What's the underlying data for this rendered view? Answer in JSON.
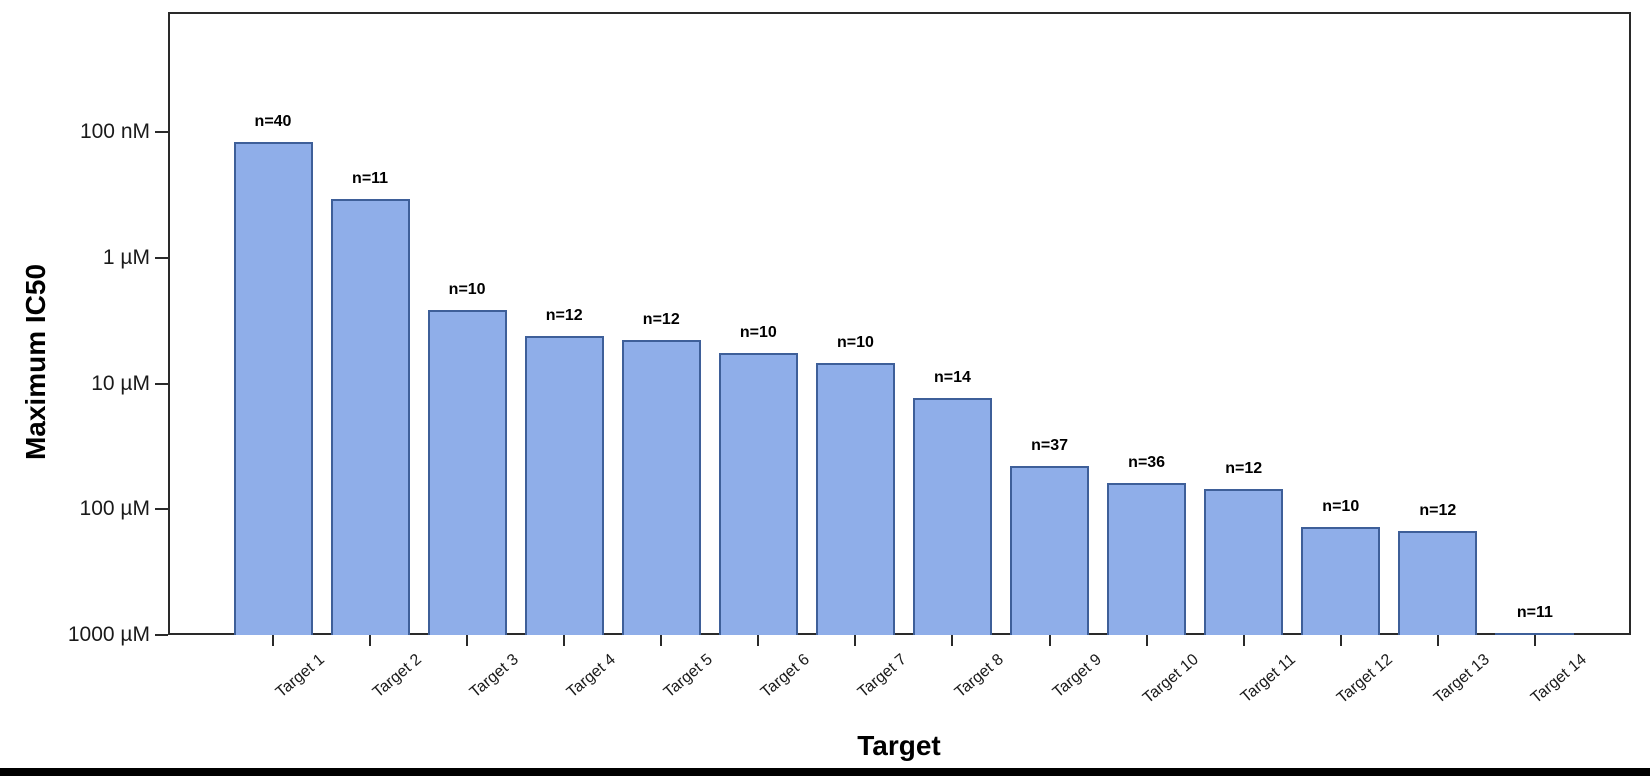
{
  "figure": {
    "background_color": "#ffffff",
    "bottom_strip_color": "#000000"
  },
  "chart_data": {
    "type": "bar",
    "title": "",
    "xlabel": "Target",
    "ylabel": "Maximum IC50",
    "y_scale": "log-inverted",
    "y_units": "µM",
    "ylim_uM": [
      0.011,
      1000
    ],
    "baseline_uM": 1000,
    "grid": "dashed-horizontal",
    "y_ticks": [
      {
        "label": "100 nM",
        "value_uM": 0.1
      },
      {
        "label": "1 µM",
        "value_uM": 1
      },
      {
        "label": "10 µM",
        "value_uM": 10
      },
      {
        "label": "100 µM",
        "value_uM": 100
      },
      {
        "label": "1000 µM",
        "value_uM": 1000
      }
    ],
    "categories": [
      "Target 1",
      "Target 2",
      "Target 3",
      "Target 4",
      "Target 5",
      "Target 6",
      "Target 7",
      "Target 8",
      "Target 9",
      "Target 10",
      "Target 11",
      "Target 12",
      "Target 13",
      "Target 14"
    ],
    "values_uM": [
      0.12,
      0.34,
      2.6,
      4.2,
      4.5,
      5.7,
      6.8,
      13,
      45,
      62,
      69,
      138,
      148,
      960
    ],
    "annotations": [
      "n=40",
      "n=11",
      "n=10",
      "n=12",
      "n=12",
      "n=10",
      "n=10",
      "n=14",
      "n=37",
      "n=36",
      "n=12",
      "n=10",
      "n=12",
      "n=11"
    ],
    "n_values": [
      40,
      11,
      10,
      12,
      12,
      10,
      10,
      14,
      37,
      36,
      12,
      10,
      12,
      11
    ],
    "bar_fill_color": "#8FAEE9",
    "bar_edge_color": "#3E5F99",
    "legend": "none"
  }
}
